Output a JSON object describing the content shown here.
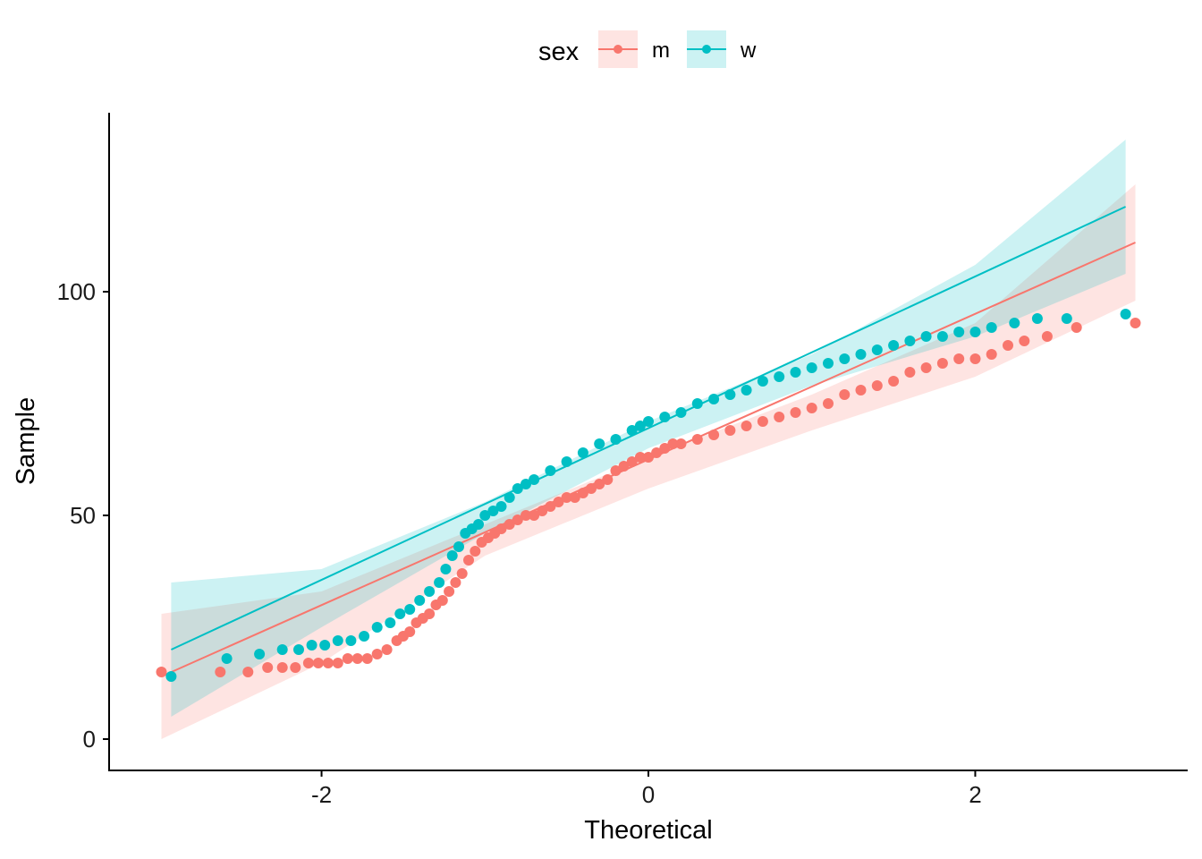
{
  "chart_data": {
    "type": "scatter",
    "title": "",
    "xlabel": "Theoretical",
    "ylabel": "Sample",
    "xlim": [
      -3.3,
      3.3
    ],
    "ylim": [
      -7,
      140
    ],
    "xticks": [
      -2,
      0,
      2
    ],
    "xtick_labels": [
      "-2",
      "0",
      "2"
    ],
    "yticks": [
      0,
      50,
      100
    ],
    "ytick_labels": [
      "0",
      "50",
      "100"
    ],
    "grid": false,
    "legend": {
      "title": "sex",
      "placement": "top-center",
      "entries": [
        "m",
        "w"
      ]
    },
    "series": [
      {
        "name": "m",
        "color": "#F8766D",
        "line": {
          "x": [
            -2.98,
            2.98
          ],
          "y": [
            14,
            111
          ]
        },
        "band": {
          "x": [
            -2.98,
            -2.0,
            -1.0,
            0.0,
            1.0,
            2.0,
            2.98
          ],
          "upper": [
            28,
            33,
            48,
            63,
            77,
            93,
            124
          ],
          "lower": [
            0,
            17,
            41,
            56,
            69,
            81,
            98
          ]
        },
        "points": {
          "x": [
            -2.98,
            -2.62,
            -2.45,
            -2.33,
            -2.24,
            -2.16,
            -2.08,
            -2.02,
            -1.96,
            -1.9,
            -1.84,
            -1.78,
            -1.72,
            -1.66,
            -1.6,
            -1.54,
            -1.5,
            -1.46,
            -1.42,
            -1.38,
            -1.34,
            -1.3,
            -1.26,
            -1.22,
            -1.18,
            -1.14,
            -1.1,
            -1.06,
            -1.02,
            -0.98,
            -0.94,
            -0.9,
            -0.85,
            -0.8,
            -0.75,
            -0.7,
            -0.65,
            -0.6,
            -0.55,
            -0.5,
            -0.45,
            -0.4,
            -0.35,
            -0.3,
            -0.25,
            -0.2,
            -0.15,
            -0.1,
            -0.05,
            0.0,
            0.05,
            0.1,
            0.15,
            0.2,
            0.3,
            0.4,
            0.5,
            0.6,
            0.7,
            0.8,
            0.9,
            1.0,
            1.1,
            1.2,
            1.3,
            1.4,
            1.5,
            1.6,
            1.7,
            1.8,
            1.9,
            2.0,
            2.1,
            2.2,
            2.3,
            2.44,
            2.62,
            2.98
          ],
          "y": [
            15,
            15,
            15,
            16,
            16,
            16,
            17,
            17,
            17,
            17,
            18,
            18,
            18,
            19,
            20,
            22,
            23,
            24,
            26,
            27,
            28,
            30,
            31,
            33,
            35,
            37,
            40,
            42,
            44,
            45,
            46,
            47,
            48,
            49,
            50,
            50,
            51,
            52,
            53,
            54,
            54,
            55,
            56,
            57,
            58,
            60,
            61,
            62,
            63,
            63,
            64,
            65,
            66,
            66,
            67,
            68,
            69,
            70,
            71,
            72,
            73,
            74,
            75,
            77,
            78,
            79,
            80,
            82,
            83,
            84,
            85,
            85,
            86,
            88,
            89,
            90,
            92,
            93
          ]
        }
      },
      {
        "name": "w",
        "color": "#00BFC4",
        "line": {
          "x": [
            -2.92,
            2.92
          ],
          "y": [
            20,
            119
          ]
        },
        "band": {
          "x": [
            -2.92,
            -2.0,
            -1.0,
            0.0,
            1.0,
            2.0,
            2.92
          ],
          "upper": [
            35,
            38,
            53,
            71,
            86,
            106,
            134
          ],
          "lower": [
            5,
            25,
            46,
            65,
            79,
            90,
            104
          ]
        },
        "points": {
          "x": [
            -2.92,
            -2.58,
            -2.38,
            -2.24,
            -2.14,
            -2.06,
            -1.98,
            -1.9,
            -1.82,
            -1.74,
            -1.66,
            -1.58,
            -1.52,
            -1.46,
            -1.4,
            -1.34,
            -1.28,
            -1.24,
            -1.2,
            -1.16,
            -1.12,
            -1.08,
            -1.04,
            -1.0,
            -0.95,
            -0.9,
            -0.85,
            -0.8,
            -0.75,
            -0.7,
            -0.6,
            -0.5,
            -0.4,
            -0.3,
            -0.2,
            -0.1,
            -0.05,
            0.0,
            0.1,
            0.2,
            0.3,
            0.4,
            0.5,
            0.6,
            0.7,
            0.8,
            0.9,
            1.0,
            1.1,
            1.2,
            1.3,
            1.4,
            1.5,
            1.6,
            1.7,
            1.8,
            1.9,
            2.0,
            2.1,
            2.24,
            2.38,
            2.56,
            2.92
          ],
          "y": [
            14,
            18,
            19,
            20,
            20,
            21,
            21,
            22,
            22,
            23,
            25,
            26,
            28,
            29,
            31,
            33,
            35,
            38,
            41,
            43,
            46,
            47,
            48,
            50,
            51,
            52,
            54,
            56,
            57,
            58,
            60,
            62,
            64,
            66,
            67,
            69,
            70,
            71,
            72,
            73,
            75,
            76,
            77,
            78,
            80,
            81,
            82,
            83,
            84,
            85,
            86,
            87,
            88,
            89,
            90,
            90,
            91,
            91,
            92,
            93,
            94,
            94,
            95
          ]
        }
      }
    ]
  }
}
